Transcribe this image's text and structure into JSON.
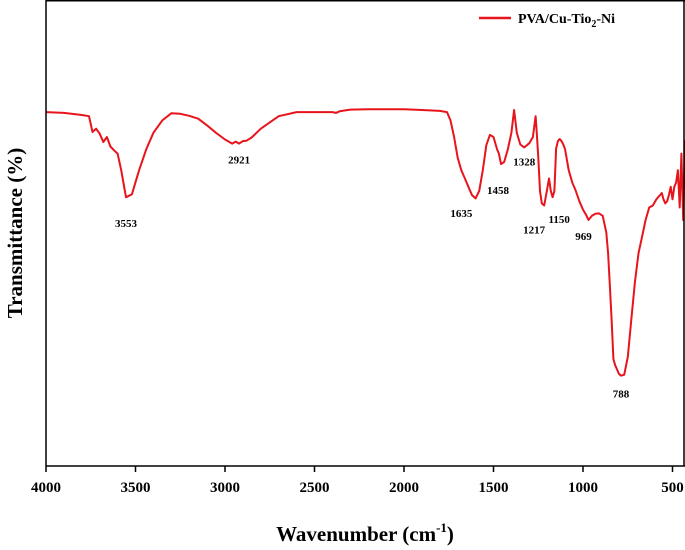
{
  "chart_data": {
    "type": "line",
    "title": "",
    "xlabel": "Wavenumber (cm",
    "xlabel_sup": "-1",
    "xlabel_end": ")",
    "ylabel": "Transmittance (%)",
    "xlim": [
      4000,
      420
    ],
    "x_ticks": [
      "4000",
      "3500",
      "3000",
      "2500",
      "2000",
      "1500",
      "1000",
      "500"
    ],
    "x_tick_values": [
      4000,
      3500,
      3000,
      2500,
      2000,
      1500,
      1000,
      500
    ],
    "y_ticks_shown": false,
    "legend": {
      "position": "top-right",
      "label_main": "PVA/Cu-Tio",
      "label_sub": "2",
      "label_end": "-Ni"
    },
    "colors": {
      "series": "#e8141c",
      "axis": "#000000"
    },
    "series": [
      {
        "name": "PVA/Cu-Tio2-Ni",
        "x": [
          4000,
          3900,
          3800,
          3760,
          3740,
          3720,
          3700,
          3680,
          3660,
          3640,
          3620,
          3600,
          3580,
          3553,
          3520,
          3480,
          3440,
          3400,
          3350,
          3300,
          3250,
          3200,
          3150,
          3100,
          3050,
          3000,
          2960,
          2940,
          2921,
          2900,
          2880,
          2850,
          2800,
          2700,
          2600,
          2500,
          2400,
          2380,
          2360,
          2300,
          2200,
          2100,
          2000,
          1900,
          1800,
          1760,
          1740,
          1720,
          1700,
          1680,
          1660,
          1640,
          1620,
          1600,
          1580,
          1560,
          1540,
          1520,
          1500,
          1480,
          1470,
          1458,
          1440,
          1420,
          1400,
          1385,
          1370,
          1350,
          1328,
          1300,
          1280,
          1265,
          1260,
          1250,
          1240,
          1230,
          1217,
          1200,
          1190,
          1180,
          1170,
          1160,
          1150,
          1140,
          1130,
          1120,
          1110,
          1100,
          1080,
          1060,
          1040,
          1020,
          1000,
          980,
          969,
          950,
          930,
          910,
          890,
          870,
          860,
          850,
          840,
          830,
          820,
          810,
          800,
          788,
          770,
          750,
          730,
          710,
          690,
          670,
          650,
          630,
          610,
          590,
          570,
          560,
          550,
          540,
          530,
          520,
          510,
          500,
          490,
          480,
          470,
          460,
          450,
          440,
          430,
          420
        ],
        "y": [
          86.0,
          85.8,
          85.3,
          85.0,
          81.2,
          82.0,
          80.8,
          78.8,
          80.0,
          77.7,
          76.8,
          76.0,
          72.0,
          65.5,
          66.2,
          72.0,
          77.0,
          81.0,
          84.0,
          85.7,
          85.6,
          85.1,
          84.4,
          82.8,
          81.0,
          79.4,
          78.4,
          78.9,
          78.4,
          79.0,
          79.1,
          79.9,
          82.0,
          85.0,
          86.0,
          86.0,
          86.0,
          85.8,
          86.2,
          86.6,
          86.7,
          86.7,
          86.7,
          86.5,
          86.3,
          86.0,
          84.0,
          80.0,
          75.0,
          72.0,
          70.0,
          68.0,
          66.0,
          65.2,
          67.0,
          72.0,
          78.0,
          80.5,
          80.0,
          77.0,
          76.0,
          73.5,
          74.0,
          77.0,
          81.0,
          86.5,
          81.0,
          78.2,
          77.5,
          78.5,
          80.0,
          85.0,
          82.0,
          75.0,
          67.0,
          64.0,
          63.5,
          67.5,
          70.0,
          67.0,
          65.5,
          67.0,
          77.2,
          79.0,
          79.5,
          79.0,
          78.2,
          77.0,
          72.0,
          69.0,
          67.0,
          64.5,
          62.5,
          61.0,
          60.0,
          61.0,
          61.5,
          61.6,
          61.0,
          57.0,
          52.0,
          44.0,
          36.0,
          26.5,
          25.0,
          24.0,
          23.0,
          22.5,
          22.7,
          27.0,
          36.0,
          45.0,
          52.0,
          56.0,
          60.0,
          63.0,
          63.5,
          65.0,
          66.0,
          66.5,
          65.0,
          64.0,
          64.5,
          66.0,
          68.0,
          65.0,
          68.0,
          69.0,
          72.0,
          63.0,
          76.0,
          60.0,
          79.0,
          70.0
        ]
      }
    ],
    "annotations": [
      {
        "text": "3553",
        "x": 3553,
        "y": 65.5
      },
      {
        "text": "2921",
        "x": 2921,
        "y": 78.4
      },
      {
        "text": "1635",
        "x": 1635,
        "y": 68.0
      },
      {
        "text": "1458",
        "x": 1458,
        "y": 73.5
      },
      {
        "text": "1328",
        "x": 1328,
        "y": 77.5
      },
      {
        "text": "1217",
        "x": 1217,
        "y": 63.5
      },
      {
        "text": "1150",
        "x": 1150,
        "y": 66.0
      },
      {
        "text": "969",
        "x": 969,
        "y": 61.5
      },
      {
        "text": "788",
        "x": 788,
        "y": 22.5
      }
    ]
  }
}
